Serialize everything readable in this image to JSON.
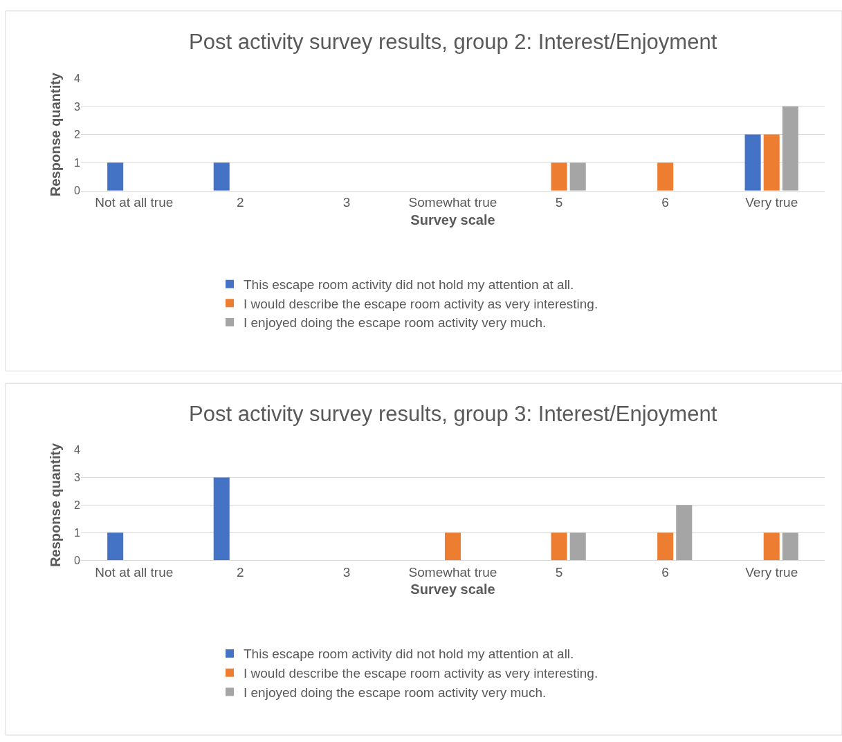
{
  "chart_data": [
    {
      "type": "bar",
      "title": "Post activity survey results, group 2: Interest/Enjoyment",
      "xlabel": "Survey scale",
      "ylabel": "Response quantity",
      "categories": [
        "Not at all true",
        "2",
        "3",
        "Somewhat true",
        "5",
        "6",
        "Very true"
      ],
      "series": [
        {
          "name": "This escape room activity did not hold my attention at all.",
          "color": "#4472c4",
          "values": [
            1,
            1,
            0,
            0,
            0,
            0,
            2
          ]
        },
        {
          "name": "I would describe the escape room activity as very interesting.",
          "color": "#ed7d31",
          "values": [
            0,
            0,
            0,
            0,
            1,
            1,
            2
          ]
        },
        {
          "name": "I enjoyed doing the escape room activity very much.",
          "color": "#a5a5a5",
          "values": [
            0,
            0,
            0,
            0,
            1,
            0,
            3
          ]
        }
      ],
      "ylim": [
        0,
        4
      ],
      "yticks": [
        0,
        1,
        2,
        3,
        4
      ],
      "grid": "y",
      "legend": "bottom"
    },
    {
      "type": "bar",
      "title": "Post activity survey results, group 3: Interest/Enjoyment",
      "xlabel": "Survey scale",
      "ylabel": "Response quantity",
      "categories": [
        "Not at all true",
        "2",
        "3",
        "Somewhat true",
        "5",
        "6",
        "Very true"
      ],
      "series": [
        {
          "name": "This escape room activity did not hold my attention at all.",
          "color": "#4472c4",
          "values": [
            1,
            3,
            0,
            0,
            0,
            0,
            0
          ]
        },
        {
          "name": "I would describe the escape room activity as very interesting.",
          "color": "#ed7d31",
          "values": [
            0,
            0,
            0,
            1,
            1,
            1,
            1
          ]
        },
        {
          "name": "I enjoyed doing the escape room activity very much.",
          "color": "#a5a5a5",
          "values": [
            0,
            0,
            0,
            0,
            1,
            2,
            1
          ]
        }
      ],
      "ylim": [
        0,
        4
      ],
      "yticks": [
        0,
        1,
        2,
        3,
        4
      ],
      "grid": "y",
      "legend": "bottom"
    }
  ]
}
